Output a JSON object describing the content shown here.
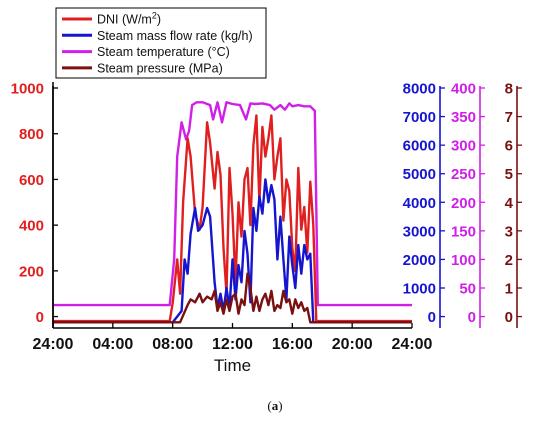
{
  "caption": {
    "open": "(",
    "letter": "a",
    "close": ")"
  },
  "colors": {
    "dni": "#e02020",
    "flow": "#1515d0",
    "temp": "#d020e8",
    "pressure": "#7a1010",
    "axis": "#000000"
  },
  "chart_data": {
    "type": "line",
    "xlabel": "Time",
    "x_ticks": [
      "24:00",
      "04:00",
      "08:00",
      "12:00",
      "16:00",
      "20:00",
      "24:00"
    ],
    "xlim": [
      0,
      24
    ],
    "legend_position": "top-left",
    "axes": [
      {
        "id": "dni",
        "side": "left",
        "ylim": [
          -50,
          1000
        ],
        "ticks": [
          0,
          200,
          400,
          600,
          800,
          1000
        ],
        "color": "#e02020"
      },
      {
        "id": "flow",
        "side": "right",
        "ylim": [
          -400,
          8000
        ],
        "ticks": [
          0,
          1000,
          2000,
          3000,
          4000,
          5000,
          6000,
          7000,
          8000
        ],
        "color": "#1515d0"
      },
      {
        "id": "temp",
        "side": "right",
        "ylim": [
          -20,
          400
        ],
        "ticks": [
          0,
          50,
          100,
          150,
          200,
          250,
          300,
          350,
          400
        ],
        "color": "#d020e8"
      },
      {
        "id": "pressure",
        "side": "right",
        "ylim": [
          -0.4,
          8
        ],
        "ticks": [
          0,
          1,
          2,
          3,
          4,
          5,
          6,
          7,
          8
        ],
        "color": "#7a1010"
      }
    ],
    "series": [
      {
        "name": "DNI (W/m²)",
        "name_base": "DNI (W/m",
        "name_sup": "2",
        "name_tail": ")",
        "axis": "dni",
        "color": "#e02020",
        "x": [
          0,
          7.8,
          8.0,
          8.3,
          8.5,
          8.7,
          9.0,
          9.2,
          9.5,
          9.8,
          10.0,
          10.3,
          10.5,
          10.8,
          11.0,
          11.2,
          11.4,
          11.6,
          11.8,
          12.0,
          12.2,
          12.4,
          12.6,
          12.8,
          13.0,
          13.2,
          13.4,
          13.6,
          13.8,
          14.0,
          14.2,
          14.4,
          14.6,
          14.8,
          15.0,
          15.2,
          15.4,
          15.6,
          15.8,
          16.0,
          16.2,
          16.4,
          16.6,
          16.8,
          17.0,
          17.2,
          17.4,
          17.6,
          24
        ],
        "y": [
          -20,
          -20,
          60,
          250,
          100,
          500,
          780,
          700,
          450,
          380,
          480,
          850,
          760,
          560,
          720,
          620,
          300,
          100,
          650,
          450,
          150,
          500,
          350,
          600,
          650,
          400,
          750,
          880,
          500,
          830,
          700,
          780,
          880,
          600,
          700,
          780,
          420,
          600,
          550,
          300,
          200,
          650,
          380,
          480,
          280,
          590,
          400,
          -20,
          -20
        ]
      },
      {
        "name": "Steam mass flow rate (kg/h)",
        "axis": "flow",
        "color": "#1515d0",
        "x": [
          0,
          8.0,
          8.3,
          8.6,
          8.8,
          9.0,
          9.2,
          9.5,
          9.7,
          10.0,
          10.3,
          10.5,
          10.8,
          11.0,
          11.2,
          11.4,
          11.6,
          11.8,
          12.0,
          12.2,
          12.4,
          12.6,
          12.8,
          13.0,
          13.2,
          13.4,
          13.6,
          13.8,
          14.0,
          14.2,
          14.4,
          14.6,
          14.8,
          15.0,
          15.2,
          15.4,
          15.6,
          15.8,
          16.0,
          16.2,
          16.4,
          16.6,
          16.8,
          17.0,
          17.2,
          17.4,
          24
        ],
        "y": [
          -200,
          -200,
          0,
          200,
          2000,
          1500,
          2900,
          3800,
          3000,
          3200,
          3800,
          3500,
          1200,
          300,
          800,
          200,
          1000,
          300,
          2000,
          600,
          1800,
          1200,
          3000,
          2200,
          500,
          3800,
          3000,
          4200,
          3600,
          4800,
          4000,
          4600,
          4100,
          2000,
          3500,
          2000,
          600,
          2800,
          1800,
          1000,
          2500,
          1500,
          2500,
          2000,
          2200,
          -200,
          -200
        ]
      },
      {
        "name": "Steam temperature (°C)",
        "axis": "temp",
        "color": "#d020e8",
        "x": [
          0,
          7.8,
          8.1,
          8.3,
          8.6,
          8.9,
          9.1,
          9.3,
          9.6,
          10.0,
          10.5,
          10.7,
          11.0,
          11.3,
          11.6,
          12.0,
          12.5,
          12.9,
          13.2,
          13.5,
          14.0,
          14.5,
          14.8,
          15.2,
          15.5,
          15.8,
          16.0,
          16.4,
          16.8,
          17.2,
          17.5,
          17.7,
          24
        ],
        "y": [
          20,
          20,
          100,
          280,
          340,
          310,
          325,
          370,
          375,
          375,
          370,
          345,
          375,
          340,
          375,
          372,
          370,
          345,
          373,
          372,
          373,
          370,
          362,
          370,
          362,
          373,
          368,
          370,
          368,
          368,
          360,
          20,
          20
        ]
      },
      {
        "name": "Steam pressure (MPa)",
        "axis": "pressure",
        "color": "#7a1010",
        "x": [
          0,
          8.0,
          8.5,
          9.0,
          9.2,
          9.5,
          9.8,
          10.0,
          10.3,
          10.6,
          10.8,
          11.0,
          11.2,
          11.4,
          11.6,
          11.8,
          12.0,
          12.2,
          12.4,
          12.6,
          12.8,
          13.0,
          13.2,
          13.4,
          13.6,
          13.8,
          14.0,
          14.2,
          14.4,
          14.6,
          14.8,
          15.0,
          15.2,
          15.4,
          15.6,
          15.8,
          16.0,
          16.2,
          16.4,
          16.6,
          16.8,
          17.0,
          17.2,
          17.4,
          24
        ],
        "y": [
          -0.2,
          -0.2,
          -0.2,
          0.4,
          0.6,
          0.5,
          0.8,
          0.5,
          0.7,
          0.6,
          0.9,
          0.2,
          0.5,
          0.1,
          0.6,
          0.2,
          0.7,
          0.8,
          0.1,
          0.6,
          0.4,
          1.5,
          1.0,
          0.2,
          0.7,
          0.2,
          0.6,
          0.8,
          0.4,
          0.9,
          0.2,
          0.4,
          0.3,
          0.9,
          0.5,
          0.6,
          0.1,
          0.6,
          0.3,
          0.5,
          0.2,
          0.3,
          -0.2,
          -0.2,
          -0.2
        ]
      }
    ]
  }
}
